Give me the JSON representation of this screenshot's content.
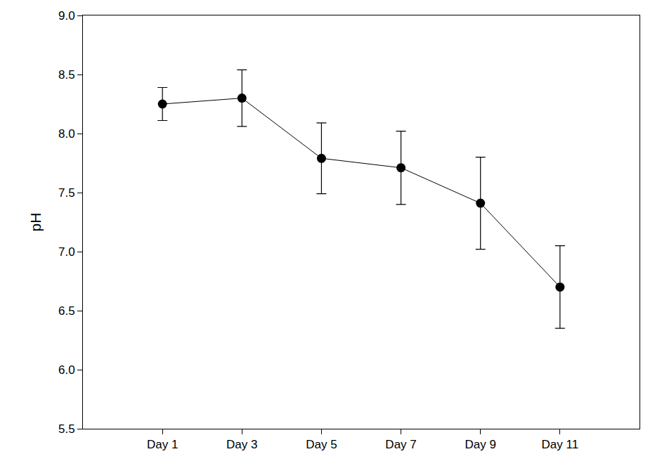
{
  "chart_data": {
    "type": "line",
    "y_label": "pH",
    "categories": [
      "Day 1",
      "Day 3",
      "Day 5",
      "Day 7",
      "Day 9",
      "Day 11"
    ],
    "values": [
      8.25,
      8.3,
      7.79,
      7.71,
      7.41,
      6.7
    ],
    "errors": [
      0.14,
      0.24,
      0.3,
      0.31,
      0.39,
      0.35
    ],
    "color": "#000000",
    "marker": "circle",
    "line_style": "solid",
    "ylim": [
      5.5,
      9.0
    ],
    "yticks": [
      5.5,
      {
        "value": 6,
        "label": "6.0"
      },
      6.5,
      {
        "value": 7,
        "label": "7.0"
      },
      7.5,
      {
        "value": 8,
        "label": "8.0"
      },
      8.5,
      {
        "value": 9,
        "label": "9.0"
      }
    ],
    "grid": false
  }
}
